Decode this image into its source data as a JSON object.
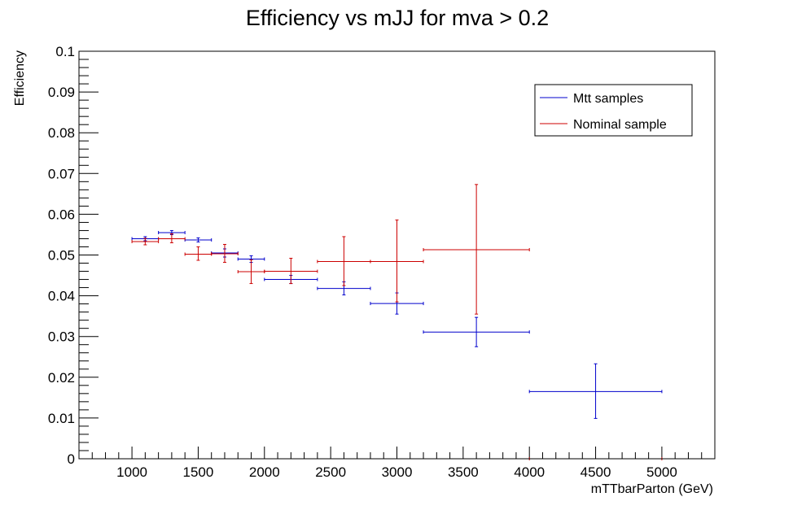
{
  "chart_data": {
    "type": "scatter",
    "title": "Efficiency vs mJJ for mva > 0.2",
    "xlabel": "mTTbarParton (GeV)",
    "ylabel": "Efficiency",
    "xlim": [
      600,
      5400
    ],
    "ylim": [
      0,
      0.1
    ],
    "grid": false,
    "legend_position": "top-right",
    "x_ticks": [
      "1000",
      "1500",
      "2000",
      "2500",
      "3000",
      "3500",
      "4000",
      "4500",
      "5000"
    ],
    "y_ticks": [
      "0",
      "0.01",
      "0.02",
      "0.03",
      "0.04",
      "0.05",
      "0.06",
      "0.07",
      "0.08",
      "0.09",
      "0.1"
    ],
    "series": [
      {
        "name": "Mtt samples",
        "color": "#0000cc",
        "points": [
          {
            "x": 1100,
            "xlo": 1000,
            "xhi": 1200,
            "y": 0.054,
            "ylo": 0.0535,
            "yhi": 0.0545
          },
          {
            "x": 1300,
            "xlo": 1200,
            "xhi": 1400,
            "y": 0.0555,
            "ylo": 0.055,
            "yhi": 0.056
          },
          {
            "x": 1500,
            "xlo": 1400,
            "xhi": 1600,
            "y": 0.0537,
            "ylo": 0.0532,
            "yhi": 0.0542
          },
          {
            "x": 1700,
            "xlo": 1600,
            "xhi": 1800,
            "y": 0.0505,
            "ylo": 0.0495,
            "yhi": 0.0515
          },
          {
            "x": 1900,
            "xlo": 1800,
            "xhi": 2000,
            "y": 0.049,
            "ylo": 0.0482,
            "yhi": 0.0498
          },
          {
            "x": 2200,
            "xlo": 2000,
            "xhi": 2400,
            "y": 0.044,
            "ylo": 0.043,
            "yhi": 0.045
          },
          {
            "x": 2600,
            "xlo": 2400,
            "xhi": 2800,
            "y": 0.0418,
            "ylo": 0.0402,
            "yhi": 0.0434
          },
          {
            "x": 3000,
            "xlo": 2800,
            "xhi": 3200,
            "y": 0.0381,
            "ylo": 0.0355,
            "yhi": 0.0407
          },
          {
            "x": 3600,
            "xlo": 3200,
            "xhi": 4000,
            "y": 0.0311,
            "ylo": 0.0275,
            "yhi": 0.0347
          },
          {
            "x": 4500,
            "xlo": 4000,
            "xhi": 5000,
            "y": 0.0165,
            "ylo": 0.0099,
            "yhi": 0.0233
          }
        ]
      },
      {
        "name": "Nominal sample",
        "color": "#cc0000",
        "points": [
          {
            "x": 1100,
            "xlo": 1000,
            "xhi": 1200,
            "y": 0.0533,
            "ylo": 0.0525,
            "yhi": 0.0541
          },
          {
            "x": 1300,
            "xlo": 1200,
            "xhi": 1400,
            "y": 0.054,
            "ylo": 0.053,
            "yhi": 0.0552
          },
          {
            "x": 1500,
            "xlo": 1400,
            "xhi": 1600,
            "y": 0.0502,
            "ylo": 0.0487,
            "yhi": 0.052
          },
          {
            "x": 1700,
            "xlo": 1600,
            "xhi": 1800,
            "y": 0.0503,
            "ylo": 0.0482,
            "yhi": 0.0526
          },
          {
            "x": 1900,
            "xlo": 1800,
            "xhi": 2000,
            "y": 0.0459,
            "ylo": 0.043,
            "yhi": 0.0488
          },
          {
            "x": 2200,
            "xlo": 2000,
            "xhi": 2400,
            "y": 0.046,
            "ylo": 0.043,
            "yhi": 0.0492
          },
          {
            "x": 2600,
            "xlo": 2400,
            "xhi": 2800,
            "y": 0.0484,
            "ylo": 0.0425,
            "yhi": 0.0545
          },
          {
            "x": 3000,
            "xlo": 2800,
            "xhi": 3200,
            "y": 0.0484,
            "ylo": 0.0385,
            "yhi": 0.0586
          },
          {
            "x": 3600,
            "xlo": 3200,
            "xhi": 4000,
            "y": 0.0513,
            "ylo": 0.0355,
            "yhi": 0.0673
          },
          {
            "x": 4500,
            "xlo": 4000,
            "xhi": 5000,
            "y": 0.0,
            "ylo": 0.0,
            "yhi": 0.0
          }
        ]
      }
    ]
  }
}
